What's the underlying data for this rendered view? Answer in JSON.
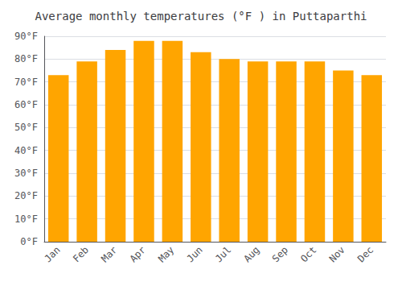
{
  "chart_data": {
    "type": "bar",
    "title": "Average monthly temperatures (°F ) in Puttaparthi",
    "categories": [
      "Jan",
      "Feb",
      "Mar",
      "Apr",
      "May",
      "Jun",
      "Jul",
      "Aug",
      "Sep",
      "Oct",
      "Nov",
      "Dec"
    ],
    "values": [
      73,
      79,
      84,
      88,
      88,
      83,
      80,
      79,
      79,
      79,
      75,
      73
    ],
    "color": "#FFA500",
    "ylim": [
      0,
      90
    ],
    "yticks": [
      {
        "value": 0,
        "label": "0°F"
      },
      {
        "value": 10,
        "label": "10°F"
      },
      {
        "value": 20,
        "label": "20°F"
      },
      {
        "value": 30,
        "label": "30°F"
      },
      {
        "value": 40,
        "label": "40°F"
      },
      {
        "value": 50,
        "label": "50°F"
      },
      {
        "value": 60,
        "label": "60°F"
      },
      {
        "value": 70,
        "label": "70°F"
      },
      {
        "value": 80,
        "label": "80°F"
      },
      {
        "value": 90,
        "label": "90°F"
      }
    ],
    "grid": true
  }
}
